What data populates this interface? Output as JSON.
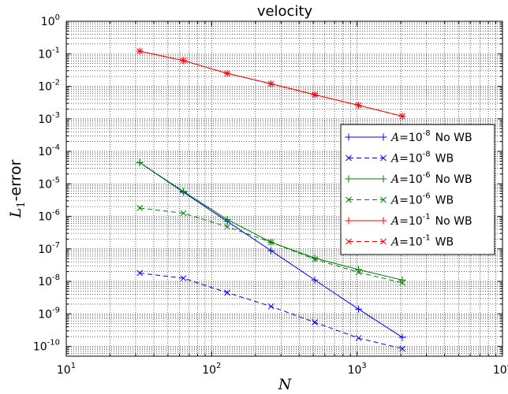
{
  "chart_data": {
    "type": "line",
    "title": "velocity",
    "xlabel": "N",
    "ylabel": "L1-error",
    "xscale": "log",
    "yscale": "log",
    "xlim": [
      10,
      10000
    ],
    "ylim": [
      5e-11,
      1
    ],
    "grid": true,
    "legend_position": "center-right",
    "x_ticks": [
      {
        "base": "10",
        "exp": "1"
      },
      {
        "base": "10",
        "exp": "2"
      },
      {
        "base": "10",
        "exp": "3"
      },
      {
        "base": "10",
        "exp": "4"
      }
    ],
    "y_ticks": [
      {
        "base": "10",
        "exp": "0"
      },
      {
        "base": "10",
        "exp": "-1"
      },
      {
        "base": "10",
        "exp": "-2"
      },
      {
        "base": "10",
        "exp": "-3"
      },
      {
        "base": "10",
        "exp": "-4"
      },
      {
        "base": "10",
        "exp": "-5"
      },
      {
        "base": "10",
        "exp": "-6"
      },
      {
        "base": "10",
        "exp": "-7"
      },
      {
        "base": "10",
        "exp": "-8"
      },
      {
        "base": "10",
        "exp": "-9"
      },
      {
        "base": "10",
        "exp": "-10"
      }
    ],
    "x": [
      32,
      64,
      128,
      256,
      512,
      1024,
      2048
    ],
    "series": [
      {
        "name": "A=10^-8 No WB",
        "legend_A": "A",
        "legend_exp": "-8",
        "legend_suffix": "No WB",
        "color": "#0000ff",
        "marker": "plus",
        "dash": "solid",
        "values": [
          4.5e-05,
          5.5e-06,
          7e-07,
          8.8e-08,
          1.1e-08,
          1.4e-09,
          1.9e-10
        ]
      },
      {
        "name": "A=10^-8 WB",
        "legend_A": "A",
        "legend_exp": "-8",
        "legend_suffix": "WB",
        "color": "#0000ff",
        "marker": "x",
        "dash": "dashed",
        "values": [
          1.8e-08,
          1.25e-08,
          4.5e-09,
          1.7e-09,
          5.5e-10,
          1.8e-10,
          8.5e-11
        ]
      },
      {
        "name": "A=10^-6 No WB",
        "legend_A": "A",
        "legend_exp": "-6",
        "legend_suffix": "No WB",
        "color": "#007f00",
        "marker": "plus",
        "dash": "solid",
        "values": [
          4.5e-05,
          5.8e-06,
          8e-07,
          1.6e-07,
          5.2e-08,
          2.3e-08,
          1.1e-08
        ]
      },
      {
        "name": "A=10^-6 WB",
        "legend_A": "A",
        "legend_exp": "-6",
        "legend_suffix": "WB",
        "color": "#007f00",
        "marker": "x",
        "dash": "dashed",
        "values": [
          1.8e-06,
          1.25e-06,
          4.8e-07,
          1.6e-07,
          4.8e-08,
          1.9e-08,
          9e-09
        ]
      },
      {
        "name": "A=10^-1 No WB",
        "legend_A": "A",
        "legend_exp": "-1",
        "legend_suffix": "No WB",
        "color": "#ff0000",
        "marker": "plus",
        "dash": "solid",
        "values": [
          0.12,
          0.062,
          0.025,
          0.012,
          0.0055,
          0.0026,
          0.0012
        ]
      },
      {
        "name": "A=10^-1 WB",
        "legend_A": "A",
        "legend_exp": "-1",
        "legend_suffix": "WB",
        "color": "#ff0000",
        "marker": "x",
        "dash": "dashed",
        "values": [
          0.12,
          0.062,
          0.025,
          0.012,
          0.0055,
          0.0026,
          0.0012
        ]
      }
    ]
  }
}
